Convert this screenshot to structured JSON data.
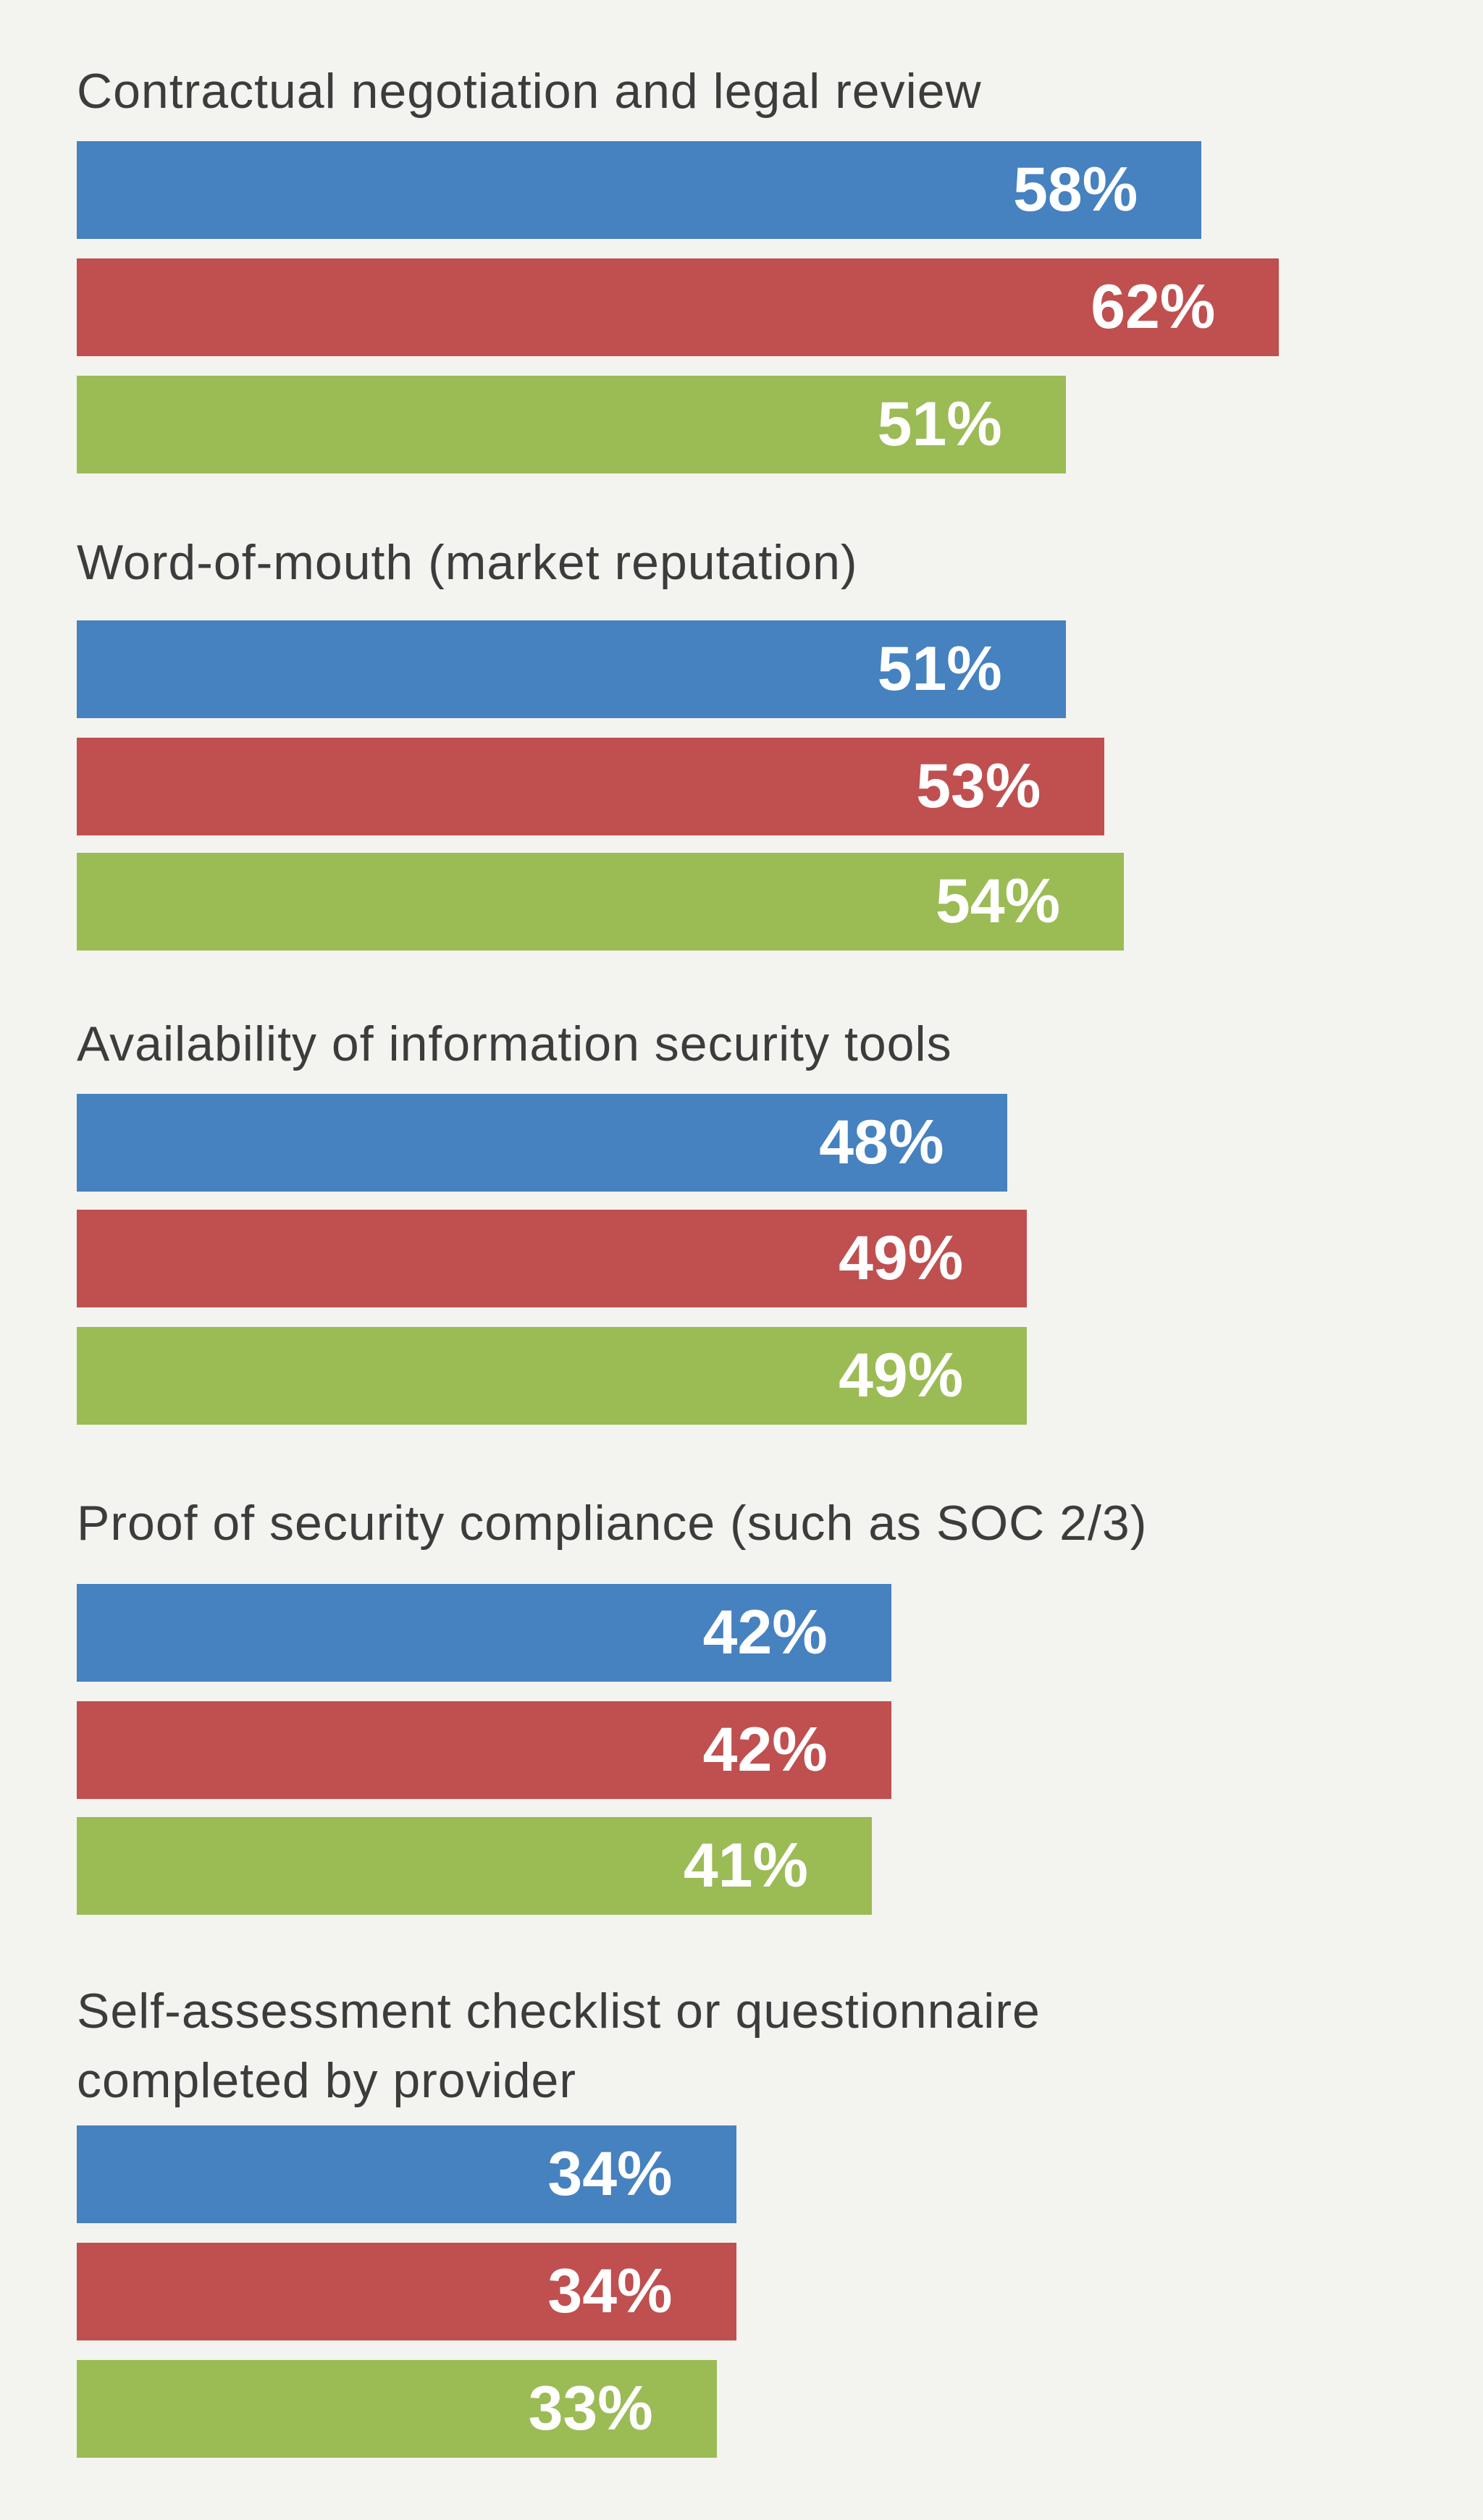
{
  "chart_data": {
    "type": "bar",
    "orientation": "horizontal",
    "categories": [
      [
        "Contractual negotiation and legal review"
      ],
      [
        "Word-of-mouth (market reputation)"
      ],
      [
        "Availability of information security tools"
      ],
      [
        "Proof of security compliance (such as SOC 2/3)"
      ],
      [
        "Self-assessment checklist or questionnaire",
        "completed by provider"
      ]
    ],
    "series": [
      {
        "color": "#4681c0",
        "values": [
          58,
          51,
          48,
          42,
          34
        ]
      },
      {
        "color": "#c04f4f",
        "values": [
          62,
          53,
          49,
          42,
          34
        ]
      },
      {
        "color": "#9bbb55",
        "values": [
          51,
          54,
          49,
          41,
          33
        ]
      }
    ],
    "value_format": "{v}%",
    "xlim": [
      0,
      100
    ],
    "grid": false,
    "legend": "none"
  }
}
